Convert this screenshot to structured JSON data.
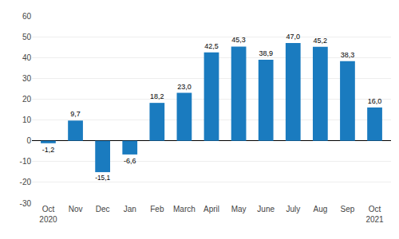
{
  "chart_data": {
    "type": "bar",
    "categories": [
      "Oct\n2020",
      "Nov",
      "Dec",
      "Jan",
      "Feb",
      "March",
      "April",
      "May",
      "June",
      "July",
      "Aug",
      "Sep",
      "Oct\n2021"
    ],
    "values": [
      -1.2,
      9.7,
      -15.1,
      -6.6,
      18.2,
      23.0,
      42.5,
      45.3,
      38.9,
      47.0,
      45.2,
      38.3,
      16.0
    ],
    "value_labels": [
      "-1,2",
      "9,7",
      "-15,1",
      "-6,6",
      "18,2",
      "23,0",
      "42,5",
      "45,3",
      "38,9",
      "47,0",
      "45,2",
      "38,3",
      "16,0"
    ],
    "data_labels": true,
    "color": "#1a7bbf",
    "ylim": [
      -30,
      60
    ],
    "yticks": [
      -30,
      -20,
      -10,
      0,
      10,
      20,
      30,
      40,
      50,
      60
    ],
    "grid": true
  }
}
